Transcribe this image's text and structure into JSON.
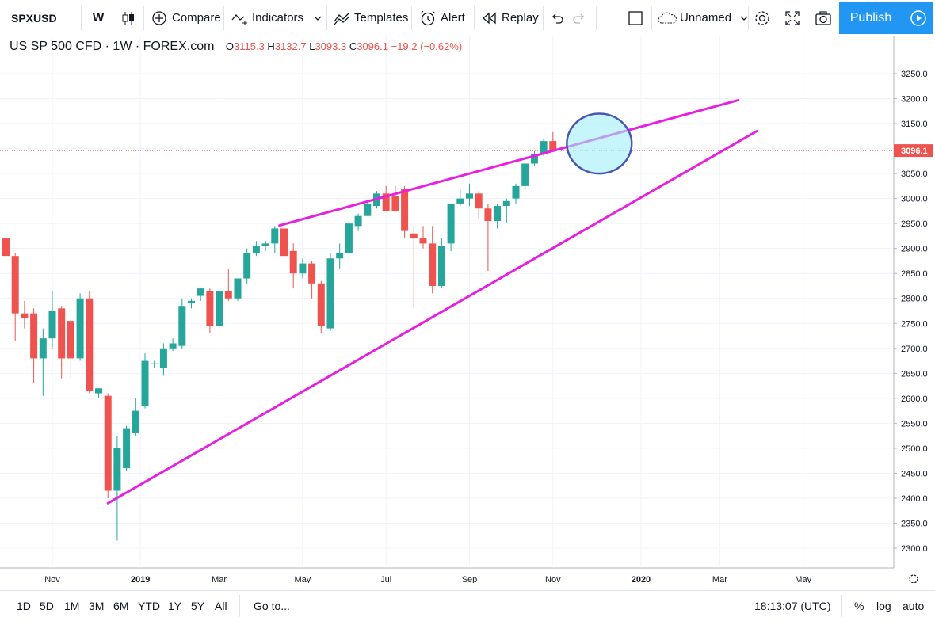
{
  "toolbar": {
    "symbol": "SPXUSD",
    "interval": "W",
    "compare_label": "Compare",
    "indicators_label": "Indicators",
    "templates_label": "Templates",
    "alert_label": "Alert",
    "replay_label": "Replay",
    "layout_name": "Unnamed",
    "publish_label": "Publish"
  },
  "legend": {
    "title": "US SP 500 CFD · 1W · FOREX.com",
    "open_label": "O",
    "open": "3115.3",
    "high_label": "H",
    "high": "3132.7",
    "low_label": "L",
    "low": "3093.3",
    "close_label": "C",
    "close": "3096.1",
    "change": "−19.2 (−0.62%)"
  },
  "bottom": {
    "ranges": [
      "1D",
      "5D",
      "1M",
      "3M",
      "6M",
      "YTD",
      "1Y",
      "5Y",
      "All"
    ],
    "goto_label": "Go to...",
    "time": "18:13:07 (UTC)",
    "percent_label": "%",
    "log_label": "log",
    "auto_label": "auto"
  },
  "colors": {
    "up": "#26a69a",
    "down": "#ef5350",
    "trendline": "#e91ee3",
    "highlight_fill": "#a0f0f8",
    "highlight_stroke": "#4a55b8",
    "accent": "#2196f3"
  },
  "chart_data": {
    "type": "candlestick",
    "title": "US SP 500 CFD · 1W · FOREX.com",
    "ylim": [
      2275,
      3275
    ],
    "price_ticks": [
      "3250.0",
      "3200.0",
      "3150.0",
      "3100.0",
      "3050.0",
      "3000.0",
      "2950.0",
      "2900.0",
      "2850.0",
      "2800.0",
      "2750.0",
      "2700.0",
      "2650.0",
      "2600.0",
      "2550.0",
      "2500.0",
      "2450.0",
      "2400.0",
      "2350.0",
      "2300.0"
    ],
    "current_price_label": "3096.1",
    "time_ticks": [
      {
        "label": "Nov",
        "week": 5
      },
      {
        "label": "2019",
        "week": 14.5
      },
      {
        "label": "Mar",
        "week": 23
      },
      {
        "label": "May",
        "week": 32
      },
      {
        "label": "Jul",
        "week": 41
      },
      {
        "label": "Sep",
        "week": 50
      },
      {
        "label": "Nov",
        "week": 59
      },
      {
        "label": "2020",
        "week": 68.5
      },
      {
        "label": "Mar",
        "week": 77
      },
      {
        "label": "May",
        "week": 86
      }
    ],
    "candles": [
      [
        2920,
        2940,
        2870,
        2885
      ],
      [
        2885,
        2890,
        2715,
        2770
      ],
      [
        2770,
        2795,
        2740,
        2760
      ],
      [
        2770,
        2780,
        2630,
        2680
      ],
      [
        2680,
        2740,
        2605,
        2720
      ],
      [
        2720,
        2815,
        2700,
        2775
      ],
      [
        2780,
        2785,
        2640,
        2680
      ],
      [
        2755,
        2760,
        2640,
        2680
      ],
      [
        2680,
        2810,
        2675,
        2800
      ],
      [
        2800,
        2815,
        2610,
        2615
      ],
      [
        2610,
        2620,
        2600,
        2620
      ],
      [
        2605,
        2610,
        2400,
        2415
      ],
      [
        2415,
        2525,
        2315,
        2500
      ],
      [
        2460,
        2545,
        2455,
        2540
      ],
      [
        2530,
        2600,
        2525,
        2575
      ],
      [
        2585,
        2690,
        2580,
        2675
      ],
      [
        2670,
        2675,
        2660,
        2670
      ],
      [
        2660,
        2710,
        2645,
        2700
      ],
      [
        2700,
        2720,
        2695,
        2710
      ],
      [
        2705,
        2800,
        2700,
        2785
      ],
      [
        2790,
        2800,
        2780,
        2795
      ],
      [
        2805,
        2820,
        2795,
        2820
      ],
      [
        2815,
        2820,
        2730,
        2745
      ],
      [
        2745,
        2820,
        2740,
        2815
      ],
      [
        2815,
        2860,
        2795,
        2800
      ],
      [
        2800,
        2840,
        2795,
        2840
      ],
      [
        2840,
        2900,
        2830,
        2890
      ],
      [
        2890,
        2915,
        2885,
        2905
      ],
      [
        2905,
        2915,
        2895,
        2910
      ],
      [
        2910,
        2945,
        2890,
        2940
      ],
      [
        2940,
        2955,
        2885,
        2885
      ],
      [
        2895,
        2910,
        2820,
        2850
      ],
      [
        2850,
        2880,
        2840,
        2870
      ],
      [
        2870,
        2875,
        2800,
        2830
      ],
      [
        2830,
        2835,
        2730,
        2745
      ],
      [
        2740,
        2890,
        2735,
        2880
      ],
      [
        2880,
        2910,
        2860,
        2890
      ],
      [
        2890,
        2955,
        2880,
        2950
      ],
      [
        2945,
        2970,
        2935,
        2965
      ],
      [
        2965,
        2995,
        2965,
        2990
      ],
      [
        2985,
        3015,
        2980,
        3010
      ],
      [
        3010,
        3025,
        2975,
        2975
      ],
      [
        3005,
        3025,
        2975,
        2975
      ],
      [
        3020,
        3025,
        2920,
        2935
      ],
      [
        2930,
        2945,
        2780,
        2920
      ],
      [
        2920,
        2945,
        2900,
        2910
      ],
      [
        2910,
        2945,
        2810,
        2825
      ],
      [
        2825,
        2920,
        2820,
        2905
      ],
      [
        2910,
        2985,
        2895,
        2990
      ],
      [
        2990,
        3020,
        2985,
        3000
      ],
      [
        3000,
        3030,
        2985,
        3010
      ],
      [
        3010,
        3015,
        2960,
        2980
      ],
      [
        2980,
        2990,
        2855,
        2955
      ],
      [
        2955,
        2990,
        2940,
        2985
      ],
      [
        2985,
        3000,
        2950,
        2995
      ],
      [
        3000,
        3030,
        2990,
        3025
      ],
      [
        3025,
        3070,
        3020,
        3070
      ],
      [
        3070,
        3095,
        3065,
        3090
      ],
      [
        3090,
        3120,
        3085,
        3115
      ],
      [
        3115,
        3133,
        3093,
        3096
      ]
    ],
    "trendlines": [
      {
        "name": "upper",
        "from": [
          29.5,
          2946
        ],
        "to": [
          79,
          3197
        ]
      },
      {
        "name": "lower",
        "from": [
          11,
          2390
        ],
        "to": [
          81,
          3135
        ]
      }
    ],
    "highlight": {
      "center": [
        64,
        3110
      ],
      "rx_weeks": 3.5,
      "ry_price": 60
    }
  }
}
